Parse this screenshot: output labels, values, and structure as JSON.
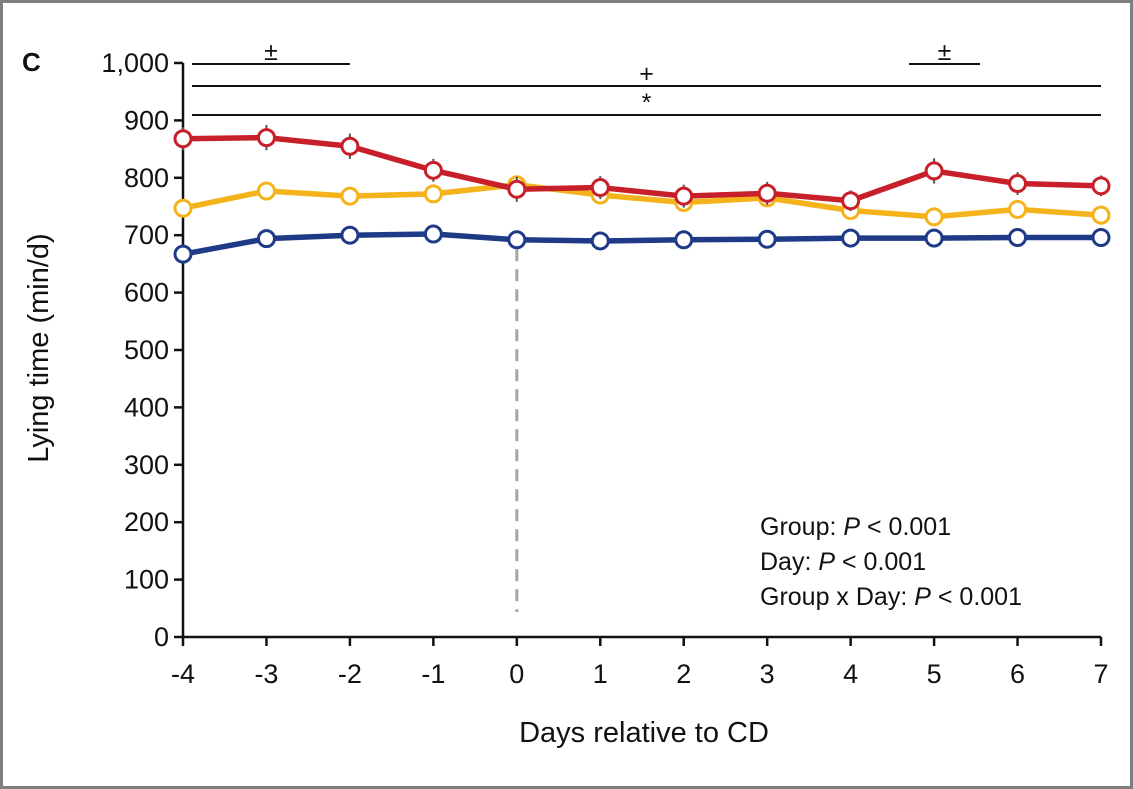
{
  "chart_data": {
    "type": "line",
    "panel_label": "C",
    "xlabel": "Days relative to CD",
    "ylabel": "Lying time (min/d)",
    "x": [
      -4,
      -3,
      -2,
      -1,
      0,
      1,
      2,
      3,
      4,
      5,
      6,
      7
    ],
    "x_tick_labels": [
      "-4",
      "-3",
      "-2",
      "-1",
      "0",
      "1",
      "2",
      "3",
      "4",
      "5",
      "6",
      "7"
    ],
    "ylim": [
      0,
      1000
    ],
    "y_ticks": [
      0,
      100,
      200,
      300,
      400,
      500,
      600,
      700,
      800,
      900,
      1000
    ],
    "y_tick_labels": [
      "0",
      "100",
      "200",
      "300",
      "400",
      "500",
      "600",
      "700",
      "800",
      "900",
      "1,000"
    ],
    "grid": false,
    "reference_line_x": 0,
    "series": [
      {
        "color": "#1f3b87",
        "values": [
          667,
          694,
          700,
          702,
          692,
          690,
          692,
          693,
          695,
          695,
          696,
          696
        ],
        "errors": [
          5,
          5,
          5,
          5,
          5,
          5,
          5,
          5,
          5,
          5,
          5,
          5
        ]
      },
      {
        "color": "#f5b31b",
        "values": [
          747,
          777,
          768,
          772,
          788,
          770,
          757,
          765,
          743,
          732,
          745,
          735
        ],
        "errors": [
          10,
          10,
          10,
          10,
          10,
          10,
          10,
          10,
          10,
          10,
          10,
          10
        ]
      },
      {
        "color": "#c8202a",
        "values": [
          868,
          870,
          855,
          813,
          780,
          783,
          768,
          773,
          760,
          812,
          790,
          786
        ],
        "errors": [
          20,
          22,
          22,
          20,
          22,
          20,
          20,
          20,
          18,
          22,
          20,
          18
        ]
      }
    ],
    "significance_bars": [
      {
        "symbol": "±",
        "x_start": -4,
        "x_end": -2,
        "level": 1
      },
      {
        "symbol": "±",
        "x_start": 4.7,
        "x_end": 5.55,
        "level": 1
      },
      {
        "symbol": "+",
        "x_start": -4,
        "x_end": 7,
        "level": 2
      },
      {
        "symbol": "*",
        "x_start": -4,
        "x_end": 7,
        "level": 3
      }
    ],
    "annotations": [
      {
        "label": "Group: ",
        "italic": "P",
        "rest": " < 0.001"
      },
      {
        "label": "Day: ",
        "italic": "P",
        "rest": " < 0.001"
      },
      {
        "label": "Group x Day: ",
        "italic": "P",
        "rest": " < 0.001"
      }
    ]
  }
}
